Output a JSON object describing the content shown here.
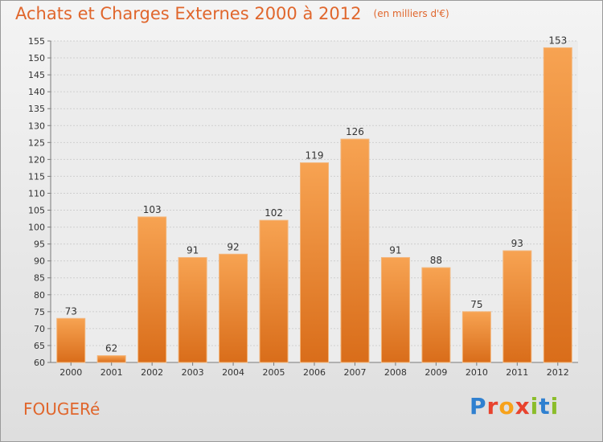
{
  "header": {
    "title": "Achats et Charges Externes 2000 à 2012",
    "subtitle": "(en milliers d'€)"
  },
  "footer": {
    "commune": "FOUGERé",
    "logo_letters": [
      {
        "ch": "P",
        "color": "#2f80d0"
      },
      {
        "ch": "r",
        "color": "#e8432e"
      },
      {
        "ch": "o",
        "color": "#f7a21b"
      },
      {
        "ch": "x",
        "color": "#e8432e"
      },
      {
        "ch": "i",
        "color": "#8bbd2a"
      },
      {
        "ch": "t",
        "color": "#2f80d0"
      },
      {
        "ch": "i",
        "color": "#8bbd2a"
      }
    ]
  },
  "chart_data": {
    "type": "bar",
    "categories": [
      "2000",
      "2001",
      "2002",
      "2003",
      "2004",
      "2005",
      "2006",
      "2007",
      "2008",
      "2009",
      "2010",
      "2011",
      "2012"
    ],
    "values": [
      73,
      62,
      103,
      91,
      92,
      102,
      119,
      126,
      91,
      88,
      75,
      93,
      153
    ],
    "ylim": [
      60,
      155
    ],
    "ytick_step": 5,
    "grid": true,
    "bar_color": "#f08a30",
    "axis_color": "#7a7a7a"
  }
}
